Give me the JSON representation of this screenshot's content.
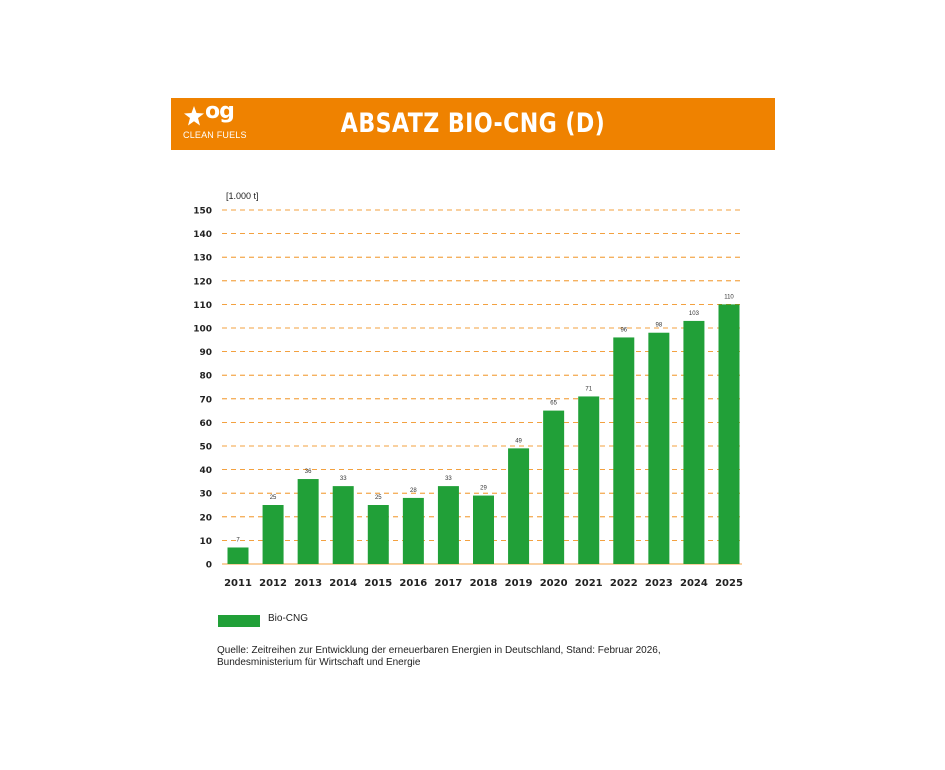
{
  "header": {
    "title": "ABSATZ BIO-CNG (D)",
    "logo_text": "og",
    "logo_subtext": "CLEAN FUELS",
    "background_color": "#ef8200"
  },
  "chart_data": {
    "type": "bar",
    "unit_label": "[1.000 t]",
    "categories": [
      "2011",
      "2012",
      "2013",
      "2014",
      "2015",
      "2016",
      "2017",
      "2018",
      "2019",
      "2020",
      "2021",
      "2022",
      "2023",
      "2024",
      "2025"
    ],
    "values": [
      7,
      25,
      36,
      33,
      25,
      28,
      33,
      29,
      49,
      65,
      71,
      96,
      98,
      103,
      110
    ],
    "ylim": [
      0,
      150
    ],
    "yticks": [
      0,
      10,
      20,
      30,
      40,
      50,
      60,
      70,
      80,
      90,
      100,
      110,
      120,
      130,
      140,
      150
    ],
    "grid": true,
    "bar_color": "#21a038",
    "grid_color": "#ef8200",
    "legend": {
      "label": "Bio-CNG",
      "placement": "bottom-left"
    }
  },
  "source": {
    "line1": "Quelle: Zeitreihen zur Entwicklung der erneuerbaren Energien in Deutschland, Stand: Februar 2026,",
    "line2": "Bundesministerium für Wirtschaft und Energie"
  }
}
